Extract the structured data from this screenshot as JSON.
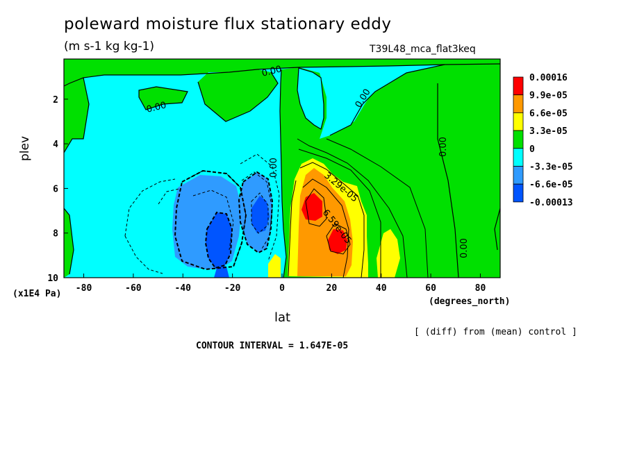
{
  "chart_data": {
    "type": "heatmap",
    "title": "poleward moisture flux stationary eddy",
    "units": "(m s-1 kg kg-1)",
    "experiment": "T39L48_mca_flat3keq",
    "xlabel": "lat",
    "xunits": "(degrees_north)",
    "ylabel": "plev",
    "yunits": "(x1E4 Pa)",
    "xlim": [
      -88,
      88
    ],
    "ylim": [
      10,
      0.2
    ],
    "x_ticks": [
      "-80",
      "-60",
      "-40",
      "-20",
      "0",
      "20",
      "40",
      "60",
      "80"
    ],
    "y_ticks": [
      "2",
      "4",
      "6",
      "8",
      "10"
    ],
    "contour_interval_text": "CONTOUR INTERVAL = 1.647E-05",
    "note": "[ (diff) from (mean) control ]",
    "colorbar": {
      "labels": [
        "0.00016",
        "9.9e-05",
        "6.6e-05",
        "3.3e-05",
        "0",
        "-3.3e-05",
        "-6.6e-05",
        "-0.00013"
      ],
      "colors": [
        "#ff0000",
        "#ff9900",
        "#ffff00",
        "#00e000",
        "#00ffff",
        "#2f9bff",
        "#0055ff"
      ]
    },
    "contour_labels": [
      "0.00",
      "0.00",
      "0.00",
      "0.00",
      "0.00",
      "0.00",
      "3.29e-05",
      "6.59e-05"
    ],
    "features": [
      {
        "x": 10,
        "y": 7.0,
        "value": 0.00016
      },
      {
        "x": 23,
        "y": 8.4,
        "value": 0.00016
      },
      {
        "x": 43,
        "y": 8.8,
        "value": 4.5e-05
      },
      {
        "x": -26,
        "y": 8.0,
        "value": -0.00012
      },
      {
        "x": -9,
        "y": 7.0,
        "value": -0.00011
      },
      {
        "x": -26,
        "y": 9.8,
        "value": -0.00012
      }
    ]
  }
}
